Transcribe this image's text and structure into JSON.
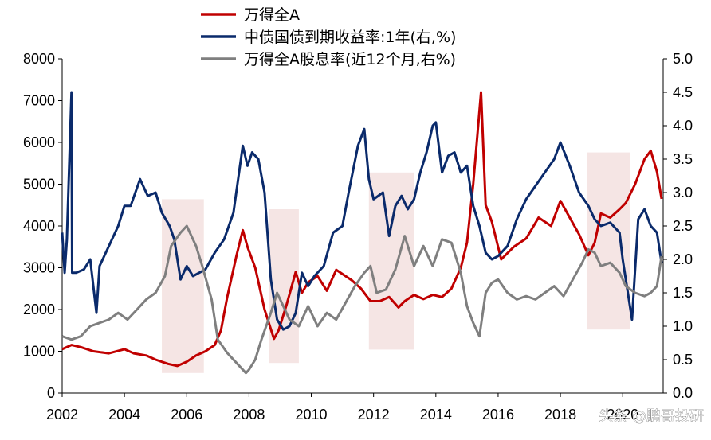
{
  "chart_data": {
    "type": "line",
    "title": "",
    "xlabel": "",
    "ylabel": "",
    "x_ticks": [
      "2002",
      "2004",
      "2006",
      "2008",
      "2010",
      "2012",
      "2014",
      "2016",
      "2018",
      "2020"
    ],
    "y_left_ticks": [
      "0",
      "1000",
      "2000",
      "3000",
      "4000",
      "5000",
      "6000",
      "7000",
      "8000"
    ],
    "y_right_ticks": [
      "0.0",
      "0.5",
      "1.0",
      "1.5",
      "2.0",
      "2.5",
      "3.0",
      "3.5",
      "4.0",
      "4.5",
      "5.0"
    ],
    "ylim_left": [
      0,
      8000
    ],
    "ylim_right": [
      0,
      5.0
    ],
    "xlim": [
      2002.0,
      2021.3
    ],
    "grid": false,
    "legend_position": "top",
    "colors": {
      "series_1": "#c00000",
      "series_2": "#0a2a6b",
      "series_3": "#7f7f7f",
      "shade": "#f2dcdb"
    },
    "shaded_periods": [
      [
        2005.2,
        2006.55
      ],
      [
        2008.65,
        2009.6
      ],
      [
        2011.85,
        2013.3
      ],
      [
        2018.85,
        2020.25
      ]
    ],
    "series": [
      {
        "name": "万得全A",
        "axis": "left",
        "color": "#c00000",
        "x": [
          2002.0,
          2002.3,
          2002.6,
          2003.0,
          2003.5,
          2004.0,
          2004.3,
          2004.7,
          2005.0,
          2005.4,
          2005.7,
          2006.0,
          2006.3,
          2006.6,
          2006.9,
          2007.1,
          2007.3,
          2007.6,
          2007.8,
          2007.95,
          2008.2,
          2008.5,
          2008.8,
          2008.95,
          2009.2,
          2009.5,
          2009.7,
          2009.9,
          2010.2,
          2010.5,
          2010.8,
          2011.0,
          2011.3,
          2011.6,
          2011.9,
          2012.2,
          2012.5,
          2012.8,
          2013.0,
          2013.3,
          2013.6,
          2013.9,
          2014.2,
          2014.5,
          2014.8,
          2015.0,
          2015.2,
          2015.45,
          2015.6,
          2015.8,
          2016.0,
          2016.1,
          2016.5,
          2016.9,
          2017.3,
          2017.7,
          2018.0,
          2018.3,
          2018.6,
          2018.9,
          2019.1,
          2019.3,
          2019.6,
          2019.9,
          2020.1,
          2020.4,
          2020.7,
          2020.9,
          2021.1,
          2021.25
        ],
        "values": [
          1050,
          1150,
          1100,
          1000,
          950,
          1050,
          950,
          900,
          800,
          700,
          650,
          750,
          900,
          1000,
          1150,
          1500,
          2300,
          3300,
          3900,
          3500,
          3000,
          2000,
          1300,
          1500,
          2100,
          2900,
          2400,
          2650,
          2800,
          2450,
          2950,
          2850,
          2700,
          2500,
          2200,
          2200,
          2300,
          2050,
          2200,
          2350,
          2250,
          2350,
          2300,
          2500,
          3000,
          3600,
          5000,
          7200,
          4500,
          4100,
          3500,
          3200,
          3500,
          3700,
          4200,
          4000,
          4600,
          4200,
          3800,
          3300,
          3600,
          4300,
          4200,
          4400,
          4550,
          5000,
          5600,
          5800,
          5300,
          4650
        ]
      },
      {
        "name": "中债国债到期收益率:1年(右,%)",
        "axis": "right",
        "color": "#0a2a6b",
        "x": [
          2002.0,
          2002.08,
          2002.15,
          2002.3,
          2002.32,
          2002.45,
          2002.7,
          2002.9,
          2003.1,
          2003.2,
          2003.5,
          2003.8,
          2004.0,
          2004.2,
          2004.5,
          2004.75,
          2005.0,
          2005.2,
          2005.45,
          2005.6,
          2005.8,
          2006.0,
          2006.2,
          2006.4,
          2006.6,
          2006.9,
          2007.2,
          2007.5,
          2007.8,
          2007.95,
          2008.1,
          2008.3,
          2008.5,
          2008.7,
          2008.9,
          2009.1,
          2009.3,
          2009.5,
          2009.7,
          2009.9,
          2010.1,
          2010.4,
          2010.7,
          2011.0,
          2011.2,
          2011.5,
          2011.7,
          2011.85,
          2012.0,
          2012.3,
          2012.5,
          2012.7,
          2012.9,
          2013.1,
          2013.3,
          2013.5,
          2013.7,
          2013.9,
          2014.0,
          2014.2,
          2014.4,
          2014.6,
          2014.8,
          2015.0,
          2015.2,
          2015.4,
          2015.6,
          2015.8,
          2016.0,
          2016.3,
          2016.6,
          2016.9,
          2017.2,
          2017.5,
          2017.8,
          2018.0,
          2018.3,
          2018.6,
          2018.9,
          2019.1,
          2019.3,
          2019.6,
          2019.9,
          2020.0,
          2020.2,
          2020.3,
          2020.5,
          2020.7,
          2020.9,
          2021.1,
          2021.25
        ],
        "values": [
          2.4,
          1.8,
          2.3,
          4.5,
          1.8,
          1.8,
          1.85,
          2.0,
          1.2,
          1.9,
          2.2,
          2.5,
          2.8,
          2.8,
          3.2,
          2.95,
          3.0,
          2.7,
          2.5,
          2.3,
          1.7,
          1.9,
          1.75,
          1.8,
          1.85,
          2.1,
          2.3,
          2.7,
          3.7,
          3.4,
          3.6,
          3.5,
          3.0,
          1.7,
          1.1,
          0.95,
          1.0,
          1.2,
          1.8,
          1.6,
          1.75,
          1.9,
          2.4,
          2.5,
          3.0,
          3.7,
          3.95,
          3.2,
          2.9,
          3.0,
          2.35,
          2.8,
          2.95,
          2.75,
          2.9,
          3.3,
          3.6,
          4.0,
          4.05,
          3.3,
          3.55,
          3.6,
          3.3,
          3.4,
          2.8,
          2.5,
          2.1,
          2.0,
          2.05,
          2.2,
          2.6,
          2.9,
          3.1,
          3.3,
          3.5,
          3.75,
          3.4,
          3.0,
          2.8,
          2.6,
          2.5,
          2.55,
          2.4,
          2.0,
          1.4,
          1.1,
          2.6,
          2.75,
          2.5,
          2.4,
          1.95
        ]
      },
      {
        "name": "万得全A股息率(近12个月,右%)",
        "axis": "right",
        "color": "#7f7f7f",
        "x": [
          2002.0,
          2002.3,
          2002.6,
          2002.9,
          2003.2,
          2003.5,
          2003.8,
          2004.1,
          2004.4,
          2004.7,
          2005.0,
          2005.3,
          2005.5,
          2005.8,
          2006.0,
          2006.3,
          2006.5,
          2006.8,
          2007.0,
          2007.3,
          2007.6,
          2007.9,
          2008.0,
          2008.2,
          2008.4,
          2008.7,
          2008.9,
          2009.1,
          2009.3,
          2009.6,
          2009.9,
          2010.2,
          2010.5,
          2010.8,
          2011.1,
          2011.4,
          2011.7,
          2011.9,
          2012.1,
          2012.4,
          2012.7,
          2013.0,
          2013.3,
          2013.6,
          2013.9,
          2014.2,
          2014.5,
          2014.8,
          2015.0,
          2015.2,
          2015.4,
          2015.6,
          2015.8,
          2016.0,
          2016.3,
          2016.6,
          2016.9,
          2017.2,
          2017.5,
          2017.8,
          2018.1,
          2018.4,
          2018.7,
          2018.9,
          2019.1,
          2019.3,
          2019.6,
          2019.9,
          2020.1,
          2020.4,
          2020.7,
          2020.9,
          2021.1,
          2021.25
        ],
        "values": [
          0.85,
          0.8,
          0.85,
          1.0,
          1.05,
          1.1,
          1.2,
          1.1,
          1.25,
          1.4,
          1.5,
          1.75,
          2.2,
          2.4,
          2.5,
          2.2,
          1.9,
          1.4,
          0.8,
          0.6,
          0.45,
          0.3,
          0.35,
          0.5,
          0.8,
          1.2,
          1.5,
          1.3,
          1.1,
          1.0,
          1.3,
          1.0,
          1.2,
          1.1,
          1.35,
          1.6,
          1.8,
          1.9,
          1.5,
          1.55,
          1.85,
          2.35,
          1.9,
          2.2,
          1.9,
          2.3,
          2.25,
          1.8,
          1.3,
          1.05,
          0.85,
          1.5,
          1.65,
          1.7,
          1.5,
          1.4,
          1.45,
          1.4,
          1.5,
          1.6,
          1.45,
          1.7,
          1.95,
          2.15,
          2.1,
          1.9,
          1.95,
          1.8,
          1.6,
          1.5,
          1.45,
          1.5,
          1.6,
          2.05
        ]
      }
    ]
  },
  "watermark": "头条 @鹏哥投研"
}
